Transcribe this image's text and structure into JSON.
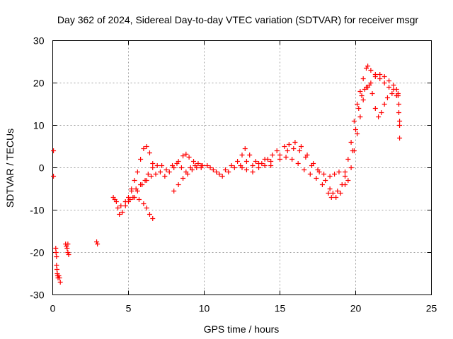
{
  "chart_data": {
    "type": "scatter",
    "title": "Day 362 of 2024, Sidereal Day-to-day VTEC variation (SDTVAR) for receiver msgr",
    "xlabel": "GPS time / hours",
    "ylabel": "SDTVAR / TECUs",
    "xlim": [
      0,
      25
    ],
    "ylim": [
      -30,
      30
    ],
    "xticks": [
      0,
      5,
      10,
      15,
      20,
      25
    ],
    "yticks": [
      -30,
      -20,
      -10,
      0,
      10,
      20,
      30
    ],
    "grid": true,
    "marker": "plus",
    "marker_color": "#ff0000",
    "series": [
      {
        "points": [
          [
            0.05,
            4
          ],
          [
            0.05,
            -2
          ],
          [
            0.2,
            -19
          ],
          [
            0.22,
            -20
          ],
          [
            0.25,
            -21
          ],
          [
            0.25,
            -23
          ],
          [
            0.28,
            -24
          ],
          [
            0.3,
            -25
          ],
          [
            0.32,
            -25.5
          ],
          [
            0.35,
            -26
          ],
          [
            0.4,
            -25.5
          ],
          [
            0.45,
            -26
          ],
          [
            0.5,
            -27
          ],
          [
            0.85,
            -18
          ],
          [
            0.9,
            -18.5
          ],
          [
            0.95,
            -19
          ],
          [
            1.0,
            -20
          ],
          [
            1.05,
            -20.5
          ],
          [
            1.0,
            -18
          ],
          [
            2.9,
            -17.5
          ],
          [
            2.95,
            -18
          ],
          [
            4.0,
            -7
          ],
          [
            4.1,
            -7.5
          ],
          [
            4.2,
            -8
          ],
          [
            4.3,
            -9.5
          ],
          [
            4.4,
            -11
          ],
          [
            4.6,
            -10.5
          ],
          [
            4.8,
            -9
          ],
          [
            5.0,
            -7
          ],
          [
            5.2,
            -5
          ],
          [
            5.4,
            -3
          ],
          [
            5.6,
            -1
          ],
          [
            5.8,
            2
          ],
          [
            6.0,
            4.5
          ],
          [
            6.2,
            5
          ],
          [
            6.4,
            3.5
          ],
          [
            6.6,
            1
          ],
          [
            4.5,
            -9
          ],
          [
            4.8,
            -8
          ],
          [
            5.1,
            -7.5
          ],
          [
            5.4,
            -7
          ],
          [
            5.7,
            -7.5
          ],
          [
            6.0,
            -8.5
          ],
          [
            6.2,
            -9.5
          ],
          [
            6.4,
            -11
          ],
          [
            6.6,
            -12
          ],
          [
            5.2,
            -5.5
          ],
          [
            5.5,
            -5
          ],
          [
            5.8,
            -4
          ],
          [
            6.1,
            -3
          ],
          [
            6.3,
            -1.5
          ],
          [
            6.6,
            0
          ],
          [
            6.9,
            0.5
          ],
          [
            7.2,
            0.5
          ],
          [
            5.0,
            -8
          ],
          [
            5.3,
            -7
          ],
          [
            5.6,
            -5.5
          ],
          [
            5.9,
            -4
          ],
          [
            6.2,
            -3
          ],
          [
            6.5,
            -2
          ],
          [
            6.8,
            -1.5
          ],
          [
            7.1,
            -1
          ],
          [
            7.4,
            -2
          ],
          [
            7.7,
            -1
          ],
          [
            8.0,
            0
          ],
          [
            8.3,
            1.5
          ],
          [
            8.6,
            2.8
          ],
          [
            8.8,
            3.2
          ],
          [
            9.0,
            2.5
          ],
          [
            9.3,
            1.5
          ],
          [
            9.6,
            1
          ],
          [
            9.9,
            0.5
          ],
          [
            7.5,
            -0.5
          ],
          [
            7.9,
            0.5
          ],
          [
            8.2,
            1
          ],
          [
            8.5,
            0
          ],
          [
            8.8,
            -1
          ],
          [
            9.1,
            0
          ],
          [
            9.4,
            0.5
          ],
          [
            9.8,
            0
          ],
          [
            8.0,
            -5.5
          ],
          [
            8.3,
            -4
          ],
          [
            8.6,
            -2.5
          ],
          [
            8.9,
            -1.5
          ],
          [
            9.2,
            -0.5
          ],
          [
            9.5,
            0
          ],
          [
            9.8,
            0.5
          ],
          [
            10.2,
            0.5
          ],
          [
            10.6,
            -0.5
          ],
          [
            11.0,
            -1.5
          ],
          [
            11.4,
            -0.5
          ],
          [
            11.8,
            0.5
          ],
          [
            12.2,
            1.5
          ],
          [
            12.5,
            3
          ],
          [
            12.7,
            4.5
          ],
          [
            13.0,
            3
          ],
          [
            13.4,
            1.5
          ],
          [
            13.8,
            1
          ],
          [
            14.2,
            2
          ],
          [
            14.5,
            3
          ],
          [
            14.8,
            4
          ],
          [
            10.4,
            0
          ],
          [
            10.8,
            -1
          ],
          [
            11.2,
            -2
          ],
          [
            11.6,
            -1
          ],
          [
            12.0,
            0
          ],
          [
            12.4,
            0.5
          ],
          [
            12.8,
            1.5
          ],
          [
            13.2,
            0.5
          ],
          [
            13.6,
            0
          ],
          [
            14.0,
            0.5
          ],
          [
            14.4,
            1.5
          ],
          [
            12.5,
            0
          ],
          [
            12.8,
            -0.5
          ],
          [
            13.2,
            -1
          ],
          [
            13.6,
            1
          ],
          [
            14.0,
            2
          ],
          [
            14.4,
            0.5
          ],
          [
            15.0,
            3
          ],
          [
            15.3,
            5
          ],
          [
            15.6,
            5.5
          ],
          [
            16.0,
            6
          ],
          [
            16.4,
            5
          ],
          [
            16.8,
            3
          ],
          [
            17.2,
            1
          ],
          [
            17.6,
            -1
          ],
          [
            18.0,
            -3
          ],
          [
            18.3,
            -5
          ],
          [
            18.5,
            -6
          ],
          [
            18.8,
            -5.5
          ],
          [
            19.1,
            -4
          ],
          [
            19.3,
            -2
          ],
          [
            15.0,
            2
          ],
          [
            15.4,
            2.5
          ],
          [
            15.8,
            2
          ],
          [
            16.2,
            1
          ],
          [
            16.6,
            -0.5
          ],
          [
            17.0,
            -1.5
          ],
          [
            17.4,
            -2.5
          ],
          [
            17.8,
            -4
          ],
          [
            18.2,
            -6
          ],
          [
            18.4,
            -7
          ],
          [
            18.7,
            -7
          ],
          [
            19.0,
            -6
          ],
          [
            19.3,
            -4
          ],
          [
            15.5,
            4
          ],
          [
            15.9,
            4.5
          ],
          [
            16.3,
            4
          ],
          [
            16.7,
            2.5
          ],
          [
            17.1,
            0.5
          ],
          [
            17.5,
            -0.5
          ],
          [
            17.9,
            -1.5
          ],
          [
            18.3,
            -2
          ],
          [
            18.6,
            -1.5
          ],
          [
            18.9,
            -1
          ],
          [
            19.3,
            -1
          ],
          [
            19.5,
            2
          ],
          [
            19.7,
            6
          ],
          [
            19.9,
            11
          ],
          [
            20.1,
            15
          ],
          [
            20.3,
            18
          ],
          [
            20.5,
            21
          ],
          [
            20.7,
            23.5
          ],
          [
            20.8,
            24
          ],
          [
            21.0,
            23
          ],
          [
            21.3,
            22
          ],
          [
            21.6,
            22
          ],
          [
            21.9,
            21.5
          ],
          [
            22.2,
            20.5
          ],
          [
            22.5,
            19.5
          ],
          [
            22.7,
            18.5
          ],
          [
            22.8,
            17.5
          ],
          [
            19.5,
            -3
          ],
          [
            19.7,
            0
          ],
          [
            19.9,
            4
          ],
          [
            20.1,
            8
          ],
          [
            20.3,
            12
          ],
          [
            20.5,
            16
          ],
          [
            20.7,
            19
          ],
          [
            20.9,
            19.5
          ],
          [
            21.1,
            17.5
          ],
          [
            21.3,
            14
          ],
          [
            21.5,
            12
          ],
          [
            21.7,
            13
          ],
          [
            21.9,
            15
          ],
          [
            22.1,
            16.5
          ],
          [
            22.4,
            17.5
          ],
          [
            22.7,
            17
          ],
          [
            19.8,
            4
          ],
          [
            20.0,
            9
          ],
          [
            20.2,
            14
          ],
          [
            20.4,
            17
          ],
          [
            20.6,
            18.5
          ],
          [
            20.8,
            19
          ],
          [
            21.0,
            20
          ],
          [
            21.3,
            21.5
          ],
          [
            21.6,
            21
          ],
          [
            21.9,
            20
          ],
          [
            22.2,
            19
          ],
          [
            22.5,
            18.5
          ],
          [
            22.8,
            17
          ],
          [
            22.85,
            15
          ],
          [
            22.85,
            13
          ],
          [
            22.9,
            11
          ],
          [
            22.9,
            10
          ],
          [
            22.9,
            7
          ]
        ]
      }
    ]
  }
}
